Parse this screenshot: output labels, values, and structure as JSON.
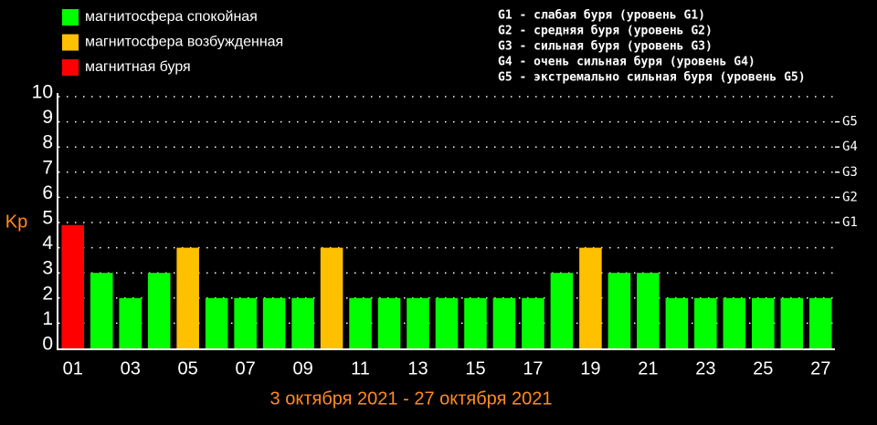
{
  "chart_data": {
    "type": "bar",
    "title": "3 октября 2021 - 27 октября 2021",
    "y_label": "Kp",
    "categories": [
      "01",
      null,
      "03",
      null,
      "05",
      null,
      "07",
      null,
      "09",
      null,
      "11",
      null,
      "13",
      null,
      "15",
      null,
      "17",
      null,
      "19",
      null,
      "21",
      null,
      "23",
      null,
      "25",
      null,
      "27"
    ],
    "values": [
      4.9,
      3,
      2,
      3,
      4,
      2,
      2,
      2,
      2,
      4,
      2,
      2,
      2,
      2,
      2,
      2,
      2,
      3,
      4,
      3,
      3,
      2,
      2,
      2,
      2,
      2,
      2
    ],
    "colors": [
      "#ff0000",
      "#00ff00",
      "#00ff00",
      "#00ff00",
      "#ffc000",
      "#00ff00",
      "#00ff00",
      "#00ff00",
      "#00ff00",
      "#ffc000",
      "#00ff00",
      "#00ff00",
      "#00ff00",
      "#00ff00",
      "#00ff00",
      "#00ff00",
      "#00ff00",
      "#00ff00",
      "#ffc000",
      "#00ff00",
      "#00ff00",
      "#00ff00",
      "#00ff00",
      "#00ff00",
      "#00ff00",
      "#00ff00",
      "#00ff00"
    ],
    "legend": [
      {
        "name": "магнитосфера спокойная",
        "color": "#00ff00"
      },
      {
        "name": "магнитосфера возбужденная",
        "color": "#ffc000"
      },
      {
        "name": "магнитная буря",
        "color": "#ff0000"
      }
    ],
    "notes": [
      "G1 - слабая буря (уровень G1)",
      "G2 - средняя буря (уровень G2)",
      "G3 - сильная буря (уровень G3)",
      "G4 - очень сильная буря (уровень G4)",
      "G5 - экстремально сильная буря (уровень G5)"
    ],
    "ylim": [
      0,
      10
    ],
    "yticks": [
      0,
      1,
      2,
      3,
      4,
      5,
      6,
      7,
      8,
      9,
      10
    ],
    "y2lim": [
      0,
      10
    ],
    "y2ticks": [
      {
        "value": 5,
        "label": "G1"
      },
      {
        "value": 6,
        "label": "G2"
      },
      {
        "value": 7,
        "label": "G3"
      },
      {
        "value": 8,
        "label": "G4"
      },
      {
        "value": 9,
        "label": "G5"
      }
    ],
    "grid": true
  }
}
